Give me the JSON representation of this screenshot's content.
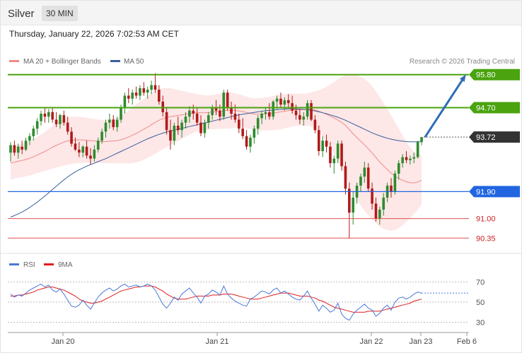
{
  "header": {
    "title": "Silver",
    "timeframe": "30 MIN"
  },
  "timestamp": "Thursday, January 22, 2026 7:02:53 AM CET",
  "legend": {
    "ma20": {
      "label": "MA 20 + Bollinger Bands",
      "color": "#f08a8a"
    },
    "ma50": {
      "label": "MA 50",
      "color": "#3a5f9a"
    },
    "rsi": {
      "label": "RSI",
      "color": "#4a78d8"
    },
    "rsi_ma": {
      "label": "9MA",
      "color": "#e01e1e"
    }
  },
  "credit": "Research © 2026 Trading Central",
  "colors": {
    "up": "#2e8b2e",
    "down": "#b11a1a",
    "resistance": "#4aa30f",
    "pivot": "#2166e0",
    "support": "#e05050",
    "last": "#333333",
    "arrow": "#2f6db5"
  },
  "chart_data": [
    {
      "type": "candlestick",
      "title": "Silver",
      "timeframe": "30 MIN",
      "x_tick_labels": [
        "Jan 20",
        "Jan 21",
        "Jan 22",
        "Jan 23",
        "Feb 6"
      ],
      "ylim": [
        90.05,
        96.1
      ],
      "price_levels": [
        {
          "label": "95.80",
          "value": 95.8,
          "kind": "resistance"
        },
        {
          "label": "94.70",
          "value": 94.7,
          "kind": "resistance"
        },
        {
          "label": "93.72",
          "value": 93.72,
          "kind": "last"
        },
        {
          "label": "91.90",
          "value": 91.9,
          "kind": "pivot"
        },
        {
          "label": "91.00",
          "value": 91.0,
          "kind": "support"
        },
        {
          "label": "90.35",
          "value": 90.35,
          "kind": "support"
        }
      ],
      "forecast_arrow": {
        "from": 93.72,
        "to": 95.8
      },
      "ohlc": [
        [
          93.2,
          93.55,
          92.9,
          93.45
        ],
        [
          93.45,
          93.6,
          93.1,
          93.2
        ],
        [
          93.2,
          93.5,
          93.0,
          93.4
        ],
        [
          93.4,
          93.6,
          93.15,
          93.3
        ],
        [
          93.3,
          93.7,
          93.25,
          93.6
        ],
        [
          93.6,
          93.85,
          93.45,
          93.75
        ],
        [
          93.75,
          94.1,
          93.6,
          94.0
        ],
        [
          94.0,
          94.35,
          93.8,
          94.25
        ],
        [
          94.25,
          94.6,
          94.1,
          94.5
        ],
        [
          94.5,
          94.7,
          94.2,
          94.4
        ],
        [
          94.4,
          94.65,
          94.2,
          94.55
        ],
        [
          94.55,
          94.7,
          94.2,
          94.3
        ],
        [
          94.3,
          94.55,
          94.05,
          94.15
        ],
        [
          94.15,
          94.5,
          94.0,
          94.45
        ],
        [
          94.45,
          94.6,
          94.1,
          94.2
        ],
        [
          94.2,
          94.4,
          93.8,
          93.9
        ],
        [
          93.9,
          94.05,
          93.4,
          93.5
        ],
        [
          93.5,
          93.7,
          93.25,
          93.3
        ],
        [
          93.3,
          93.55,
          93.05,
          93.2
        ],
        [
          93.2,
          93.45,
          93.05,
          93.4
        ],
        [
          93.4,
          93.6,
          93.0,
          93.1
        ],
        [
          93.1,
          93.35,
          92.8,
          93.0
        ],
        [
          93.0,
          93.45,
          92.9,
          93.3
        ],
        [
          93.3,
          93.7,
          93.2,
          93.6
        ],
        [
          93.6,
          94.0,
          93.5,
          93.9
        ],
        [
          93.9,
          94.3,
          93.7,
          94.2
        ],
        [
          94.2,
          94.5,
          94.0,
          94.3
        ],
        [
          94.3,
          94.45,
          93.95,
          94.05
        ],
        [
          94.05,
          94.4,
          93.9,
          94.3
        ],
        [
          94.3,
          94.8,
          94.2,
          94.7
        ],
        [
          94.7,
          95.2,
          94.5,
          95.1
        ],
        [
          95.1,
          95.35,
          94.85,
          95.0
        ],
        [
          95.0,
          95.3,
          94.8,
          95.2
        ],
        [
          95.2,
          95.4,
          95.0,
          95.1
        ],
        [
          95.1,
          95.45,
          94.95,
          95.35
        ],
        [
          95.35,
          95.55,
          95.1,
          95.2
        ],
        [
          95.2,
          95.4,
          95.0,
          95.3
        ],
        [
          95.3,
          95.6,
          95.15,
          95.45
        ],
        [
          95.45,
          95.85,
          95.2,
          95.3
        ],
        [
          95.3,
          95.45,
          94.8,
          94.9
        ],
        [
          94.9,
          95.1,
          94.4,
          94.55
        ],
        [
          94.55,
          94.7,
          93.8,
          93.95
        ],
        [
          93.95,
          94.3,
          93.3,
          93.6
        ],
        [
          93.6,
          94.2,
          93.45,
          94.1
        ],
        [
          94.1,
          94.4,
          93.8,
          93.95
        ],
        [
          93.95,
          94.3,
          93.7,
          94.2
        ],
        [
          94.2,
          94.55,
          94.0,
          94.4
        ],
        [
          94.4,
          94.75,
          94.2,
          94.6
        ],
        [
          94.6,
          94.8,
          94.3,
          94.5
        ],
        [
          94.5,
          94.7,
          94.1,
          94.2
        ],
        [
          94.2,
          94.45,
          93.75,
          93.85
        ],
        [
          93.85,
          94.3,
          93.7,
          94.2
        ],
        [
          94.2,
          94.55,
          94.0,
          94.45
        ],
        [
          94.45,
          94.8,
          94.3,
          94.7
        ],
        [
          94.7,
          94.95,
          94.45,
          94.6
        ],
        [
          94.6,
          94.8,
          94.25,
          94.4
        ],
        [
          94.4,
          95.3,
          94.3,
          95.2
        ],
        [
          95.2,
          95.3,
          94.6,
          94.7
        ],
        [
          94.7,
          94.9,
          94.3,
          94.5
        ],
        [
          94.5,
          94.8,
          94.2,
          94.3
        ],
        [
          94.3,
          94.5,
          93.85,
          94.0
        ],
        [
          94.0,
          94.35,
          93.65,
          93.75
        ],
        [
          93.75,
          93.95,
          93.3,
          93.4
        ],
        [
          93.4,
          93.8,
          93.2,
          93.7
        ],
        [
          93.7,
          94.1,
          93.5,
          94.0
        ],
        [
          94.0,
          94.45,
          93.8,
          94.35
        ],
        [
          94.35,
          94.6,
          94.15,
          94.5
        ],
        [
          94.5,
          94.7,
          94.3,
          94.55
        ],
        [
          94.55,
          94.85,
          94.3,
          94.4
        ],
        [
          94.4,
          94.95,
          94.3,
          94.9
        ],
        [
          94.9,
          95.1,
          94.65,
          95.0
        ],
        [
          95.0,
          95.2,
          94.7,
          94.8
        ],
        [
          94.8,
          95.05,
          94.6,
          94.95
        ],
        [
          94.95,
          95.15,
          94.7,
          94.85
        ],
        [
          94.85,
          95.1,
          94.5,
          94.6
        ],
        [
          94.6,
          94.8,
          94.3,
          94.45
        ],
        [
          94.45,
          94.65,
          94.15,
          94.3
        ],
        [
          94.3,
          94.55,
          94.1,
          94.4
        ],
        [
          94.4,
          94.95,
          94.3,
          94.85
        ],
        [
          94.85,
          94.95,
          94.25,
          94.3
        ],
        [
          94.3,
          94.45,
          93.85,
          93.95
        ],
        [
          93.95,
          94.1,
          93.1,
          93.25
        ],
        [
          93.25,
          93.75,
          93.05,
          93.6
        ],
        [
          93.6,
          93.8,
          93.2,
          93.4
        ],
        [
          93.4,
          93.55,
          92.7,
          92.85
        ],
        [
          92.85,
          93.1,
          92.5,
          93.0
        ],
        [
          93.0,
          93.6,
          92.85,
          93.5
        ],
        [
          93.5,
          93.6,
          92.6,
          92.75
        ],
        [
          92.75,
          92.9,
          91.8,
          92.0
        ],
        [
          92.0,
          92.2,
          90.35,
          91.2
        ],
        [
          91.2,
          91.9,
          90.8,
          91.7
        ],
        [
          91.7,
          92.2,
          91.5,
          92.1
        ],
        [
          92.1,
          92.5,
          91.9,
          92.4
        ],
        [
          92.4,
          92.9,
          92.2,
          92.7
        ],
        [
          92.7,
          92.85,
          91.9,
          92.0
        ],
        [
          92.0,
          92.2,
          91.3,
          91.5
        ],
        [
          91.5,
          91.7,
          90.9,
          91.0
        ],
        [
          91.0,
          91.4,
          90.8,
          91.3
        ],
        [
          91.3,
          91.85,
          91.1,
          91.7
        ],
        [
          91.7,
          92.2,
          91.55,
          92.1
        ],
        [
          92.1,
          92.35,
          91.7,
          91.9
        ],
        [
          91.9,
          92.6,
          91.8,
          92.5
        ],
        [
          92.5,
          92.95,
          92.3,
          92.85
        ],
        [
          92.85,
          93.15,
          92.7,
          93.05
        ],
        [
          93.05,
          93.25,
          92.85,
          92.95
        ],
        [
          92.95,
          93.1,
          92.8,
          93.0
        ],
        [
          93.0,
          93.2,
          92.85,
          93.05
        ],
        [
          93.05,
          93.6,
          93.0,
          93.55
        ],
        [
          93.55,
          93.7,
          93.45,
          93.72
        ]
      ],
      "ma20": [
        92.85,
        92.88,
        92.91,
        92.94,
        92.97,
        93.01,
        93.06,
        93.12,
        93.18,
        93.24,
        93.31,
        93.38,
        93.44,
        93.5,
        93.55,
        93.59,
        93.61,
        93.62,
        93.62,
        93.62,
        93.61,
        93.6,
        93.59,
        93.58,
        93.57,
        93.57,
        93.58,
        93.59,
        93.6,
        93.63,
        93.67,
        93.72,
        93.78,
        93.84,
        93.91,
        93.98,
        94.05,
        94.13,
        94.21,
        94.28,
        94.33,
        94.37,
        94.4,
        94.42,
        94.44,
        94.46,
        94.48,
        94.5,
        94.52,
        94.53,
        94.53,
        94.53,
        94.54,
        94.55,
        94.57,
        94.58,
        94.6,
        94.61,
        94.61,
        94.6,
        94.59,
        94.57,
        94.54,
        94.51,
        94.49,
        94.48,
        94.48,
        94.49,
        94.5,
        94.52,
        94.54,
        94.56,
        94.58,
        94.6,
        94.62,
        94.63,
        94.63,
        94.63,
        94.64,
        94.64,
        94.62,
        94.58,
        94.53,
        94.48,
        94.42,
        94.35,
        94.29,
        94.21,
        94.11,
        93.97,
        93.83,
        93.7,
        93.58,
        93.46,
        93.33,
        93.19,
        93.04,
        92.89,
        92.76,
        92.64,
        92.52,
        92.42,
        92.34,
        92.28,
        92.23,
        92.2,
        92.19,
        92.22,
        92.28
      ],
      "ma50": [
        91.05,
        91.1,
        91.16,
        91.22,
        91.29,
        91.37,
        91.46,
        91.55,
        91.65,
        91.75,
        91.86,
        91.97,
        92.08,
        92.19,
        92.29,
        92.39,
        92.48,
        92.56,
        92.63,
        92.69,
        92.75,
        92.8,
        92.85,
        92.9,
        92.95,
        93.0,
        93.06,
        93.12,
        93.18,
        93.24,
        93.3,
        93.36,
        93.42,
        93.48,
        93.54,
        93.6,
        93.66,
        93.71,
        93.76,
        93.81,
        93.85,
        93.89,
        93.92,
        93.95,
        93.98,
        94.01,
        94.04,
        94.07,
        94.1,
        94.13,
        94.16,
        94.19,
        94.22,
        94.25,
        94.28,
        94.31,
        94.34,
        94.37,
        94.4,
        94.43,
        94.46,
        94.48,
        94.5,
        94.52,
        94.54,
        94.56,
        94.58,
        94.6,
        94.61,
        94.62,
        94.63,
        94.64,
        94.65,
        94.66,
        94.66,
        94.66,
        94.65,
        94.64,
        94.63,
        94.61,
        94.59,
        94.56,
        94.53,
        94.5,
        94.46,
        94.42,
        94.38,
        94.33,
        94.28,
        94.22,
        94.16,
        94.1,
        94.04,
        93.98,
        93.92,
        93.86,
        93.81,
        93.76,
        93.72,
        93.68,
        93.65,
        93.62,
        93.6,
        93.58,
        93.57,
        93.56,
        93.56,
        93.56,
        93.57
      ],
      "bb_width": [
        0.55,
        0.55,
        0.55,
        0.56,
        0.56,
        0.57,
        0.58,
        0.6,
        0.62,
        0.65,
        0.68,
        0.71,
        0.74,
        0.76,
        0.78,
        0.79,
        0.79,
        0.78,
        0.77,
        0.76,
        0.75,
        0.74,
        0.73,
        0.72,
        0.72,
        0.72,
        0.73,
        0.74,
        0.76,
        0.79,
        0.83,
        0.88,
        0.93,
        0.97,
        1.0,
        1.02,
        1.03,
        1.04,
        1.05,
        1.04,
        1.02,
        0.99,
        0.95,
        0.9,
        0.85,
        0.8,
        0.75,
        0.7,
        0.66,
        0.62,
        0.6,
        0.58,
        0.57,
        0.57,
        0.58,
        0.59,
        0.6,
        0.61,
        0.6,
        0.58,
        0.56,
        0.54,
        0.53,
        0.52,
        0.52,
        0.53,
        0.54,
        0.55,
        0.56,
        0.57,
        0.58,
        0.58,
        0.57,
        0.56,
        0.55,
        0.54,
        0.53,
        0.53,
        0.54,
        0.57,
        0.62,
        0.7,
        0.8,
        0.92,
        1.05,
        1.2,
        1.36,
        1.52,
        1.68,
        1.84,
        1.98,
        2.08,
        2.15,
        2.2,
        2.22,
        2.22,
        2.2,
        2.16,
        2.1,
        2.02,
        1.92,
        1.8,
        1.66,
        1.5,
        1.34,
        1.18,
        1.04,
        0.92,
        0.82
      ],
      "rsi": {
        "ylim": [
          24,
          78
        ],
        "levels": [
          {
            "label": "70",
            "value": 70
          },
          {
            "label": "50",
            "value": 50
          },
          {
            "label": "30",
            "value": 30
          }
        ],
        "values": [
          58,
          55,
          57,
          56,
          59,
          62,
          64,
          66,
          68,
          65,
          67,
          62,
          60,
          63,
          58,
          52,
          46,
          45,
          47,
          52,
          47,
          43,
          49,
          55,
          59,
          62,
          64,
          61,
          63,
          66,
          68,
          65,
          66,
          67,
          65,
          66,
          68,
          66,
          62,
          55,
          48,
          44,
          49,
          55,
          52,
          58,
          61,
          64,
          59,
          55,
          49,
          56,
          58,
          62,
          60,
          57,
          66,
          58,
          54,
          51,
          49,
          47,
          46,
          53,
          55,
          58,
          61,
          60,
          58,
          62,
          64,
          59,
          61,
          58,
          55,
          53,
          52,
          56,
          61,
          54,
          48,
          41,
          47,
          44,
          40,
          42,
          49,
          38,
          34,
          32,
          38,
          42,
          45,
          48,
          44,
          42,
          36,
          39,
          44,
          47,
          42,
          50,
          54,
          55,
          53,
          55,
          58,
          60,
          59
        ],
        "ma": [
          56,
          56,
          57,
          57,
          58,
          59,
          60,
          62,
          63,
          64,
          65,
          65,
          64,
          63,
          62,
          60,
          58,
          56,
          53,
          51,
          50,
          49,
          49,
          50,
          51,
          53,
          55,
          57,
          59,
          61,
          62,
          63,
          64,
          65,
          65,
          66,
          66,
          66,
          65,
          63,
          61,
          58,
          56,
          54,
          53,
          53,
          53,
          54,
          55,
          56,
          56,
          56,
          56,
          57,
          57,
          57,
          58,
          58,
          58,
          57,
          56,
          55,
          54,
          53,
          53,
          53,
          54,
          55,
          56,
          57,
          58,
          59,
          59,
          59,
          58,
          57,
          56,
          56,
          56,
          55,
          54,
          52,
          51,
          49,
          47,
          45,
          44,
          43,
          42,
          41,
          40,
          40,
          40,
          40,
          41,
          41,
          41,
          41,
          42,
          43,
          44,
          45,
          46,
          47,
          48,
          49,
          51,
          52,
          53
        ]
      }
    }
  ]
}
